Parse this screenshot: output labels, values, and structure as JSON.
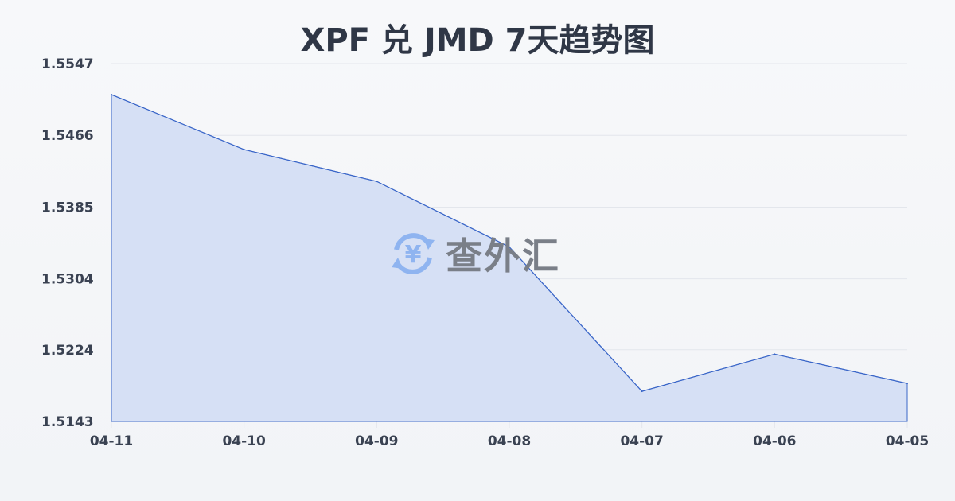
{
  "chart_data": {
    "type": "area",
    "title": "XPF 兑 JMD 7天趋势图",
    "categories": [
      "04-11",
      "04-10",
      "04-09",
      "04-08",
      "04-07",
      "04-06",
      "04-05"
    ],
    "values": [
      1.5512,
      1.545,
      1.5414,
      1.534,
      1.5177,
      1.5219,
      1.5186
    ],
    "ylim": [
      1.5143,
      1.5547
    ],
    "yticks": [
      "1.5547",
      "1.5466",
      "1.5385",
      "1.5304",
      "1.5224",
      "1.5143"
    ],
    "grid": true,
    "colors": {
      "line": "#3a66c8",
      "fill": "#d6e0f5",
      "grid": "#e3e6ec"
    }
  },
  "watermark": {
    "text": "查外汇",
    "icon": "yen-exchange-icon"
  }
}
